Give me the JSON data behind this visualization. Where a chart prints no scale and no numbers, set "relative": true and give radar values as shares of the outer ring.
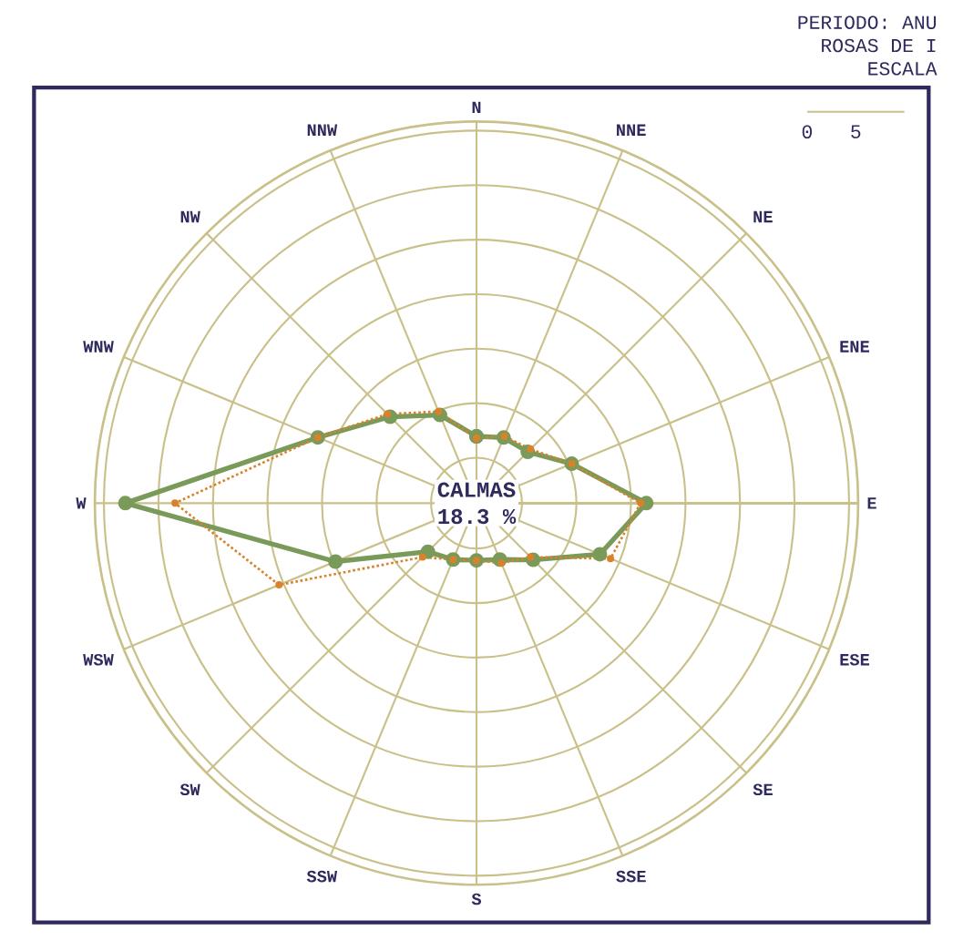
{
  "chart_data": {
    "type": "radar",
    "relative": true,
    "grid": true,
    "marker": "circle",
    "categories": [
      "N",
      "NNE",
      "NE",
      "ENE",
      "E",
      "ESE",
      "SE",
      "SSE",
      "S",
      "SSW",
      "SW",
      "WSW",
      "W",
      "WNW",
      "NW",
      "NNW"
    ],
    "series": [
      {
        "color": "#7a9a5a",
        "line_style": "solid",
        "values": [
          0.175,
          0.186,
          0.19,
          0.27,
          0.445,
          0.35,
          0.21,
          0.16,
          0.15,
          0.16,
          0.18,
          0.4,
          0.92,
          0.45,
          0.32,
          0.25
        ]
      },
      {
        "color": "#d9822b",
        "line_style": "dotted",
        "values": [
          0.17,
          0.19,
          0.2,
          0.27,
          0.43,
          0.38,
          0.2,
          0.17,
          0.15,
          0.16,
          0.2,
          0.56,
          0.79,
          0.45,
          0.33,
          0.26
        ]
      }
    ],
    "annotations": [
      "PERIODO: ANU",
      "ROSAS DE I",
      "ESCALA",
      "0",
      "5",
      "CALMAS",
      "18.3 %"
    ]
  }
}
